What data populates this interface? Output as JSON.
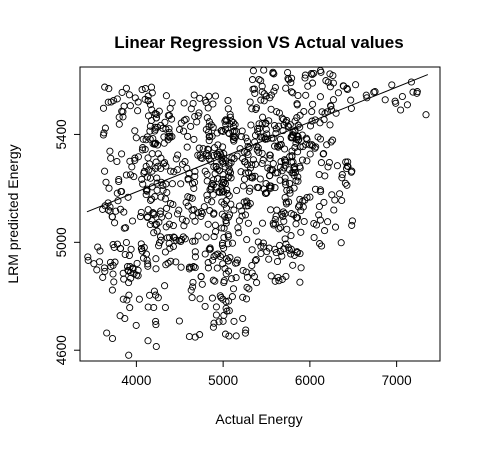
{
  "chart_data": {
    "type": "scatter",
    "title": "Linear Regression VS Actual values",
    "xlabel": "Actual Energy",
    "ylabel": "LRM predicted Energy",
    "xlim": [
      3350,
      7500
    ],
    "ylim": [
      4560,
      5650
    ],
    "x_ticks": [
      4000,
      5000,
      6000,
      7000
    ],
    "y_ticks": [
      4600,
      5000,
      5400
    ],
    "x_tick_labels": [
      "4000",
      "5000",
      "6000",
      "7000"
    ],
    "y_tick_labels": [
      "4600",
      "5000",
      "5400"
    ],
    "grid": false,
    "legend": "none",
    "marker": "open-circle",
    "fit_line": {
      "x": [
        3430,
        7360
      ],
      "y": [
        5113,
        5622
      ]
    },
    "point_clusters": [
      {
        "x_range": [
          3430,
          4150
        ],
        "y_range": [
          4850,
          5000
        ],
        "count": 45
      },
      {
        "x_range": [
          3650,
          4500
        ],
        "y_range": [
          4580,
          4840
        ],
        "count": 25
      },
      {
        "x_range": [
          3600,
          4400
        ],
        "y_range": [
          5050,
          5580
        ],
        "count": 120
      },
      {
        "x_range": [
          4050,
          5100
        ],
        "y_range": [
          4900,
          5150
        ],
        "count": 110
      },
      {
        "x_range": [
          4100,
          5150
        ],
        "y_range": [
          5150,
          5560
        ],
        "count": 140
      },
      {
        "x_range": [
          4600,
          5300
        ],
        "y_range": [
          4640,
          4880
        ],
        "count": 45
      },
      {
        "x_range": [
          4800,
          5900
        ],
        "y_range": [
          5180,
          5450
        ],
        "count": 190
      },
      {
        "x_range": [
          4900,
          5900
        ],
        "y_range": [
          4850,
          5180
        ],
        "count": 100
      },
      {
        "x_range": [
          5300,
          6300
        ],
        "y_range": [
          5350,
          5640
        ],
        "count": 120
      },
      {
        "x_range": [
          5700,
          6500
        ],
        "y_range": [
          4980,
          5350
        ],
        "count": 70
      },
      {
        "x_range": [
          6300,
          7350
        ],
        "y_range": [
          5460,
          5600
        ],
        "count": 25
      }
    ]
  }
}
